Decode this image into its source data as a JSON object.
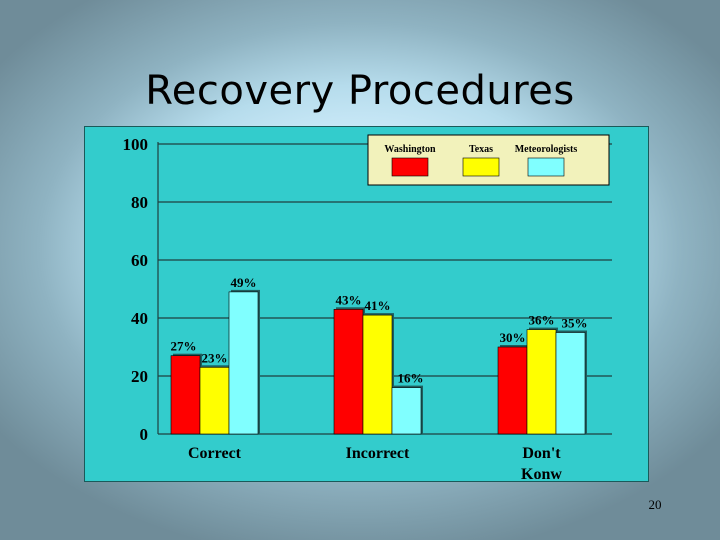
{
  "slide": {
    "title": "Recovery Procedures",
    "page_number": "20"
  },
  "chart_data": {
    "type": "bar",
    "categories": [
      [
        "Correct"
      ],
      [
        "Incorrect"
      ],
      [
        "Don't",
        "Konw"
      ]
    ],
    "series": [
      {
        "name": "Washington",
        "color": "#ff0000",
        "values": [
          27,
          43,
          30
        ],
        "labels": [
          "27%",
          "43%",
          "30%"
        ]
      },
      {
        "name": "Texas",
        "color": "#ffff00",
        "values": [
          23,
          41,
          36
        ],
        "labels": [
          "23%",
          "41%",
          "36%"
        ]
      },
      {
        "name": "Meteorologists",
        "color": "#80ffff",
        "values": [
          49,
          16,
          35
        ],
        "labels": [
          "49%",
          "16%",
          "35%"
        ]
      }
    ],
    "yticks": [
      "0",
      "20",
      "40",
      "60",
      "80",
      "100"
    ],
    "ylim": [
      0,
      100
    ],
    "grid": true,
    "legend": "top-right",
    "background": "#33cccc"
  }
}
